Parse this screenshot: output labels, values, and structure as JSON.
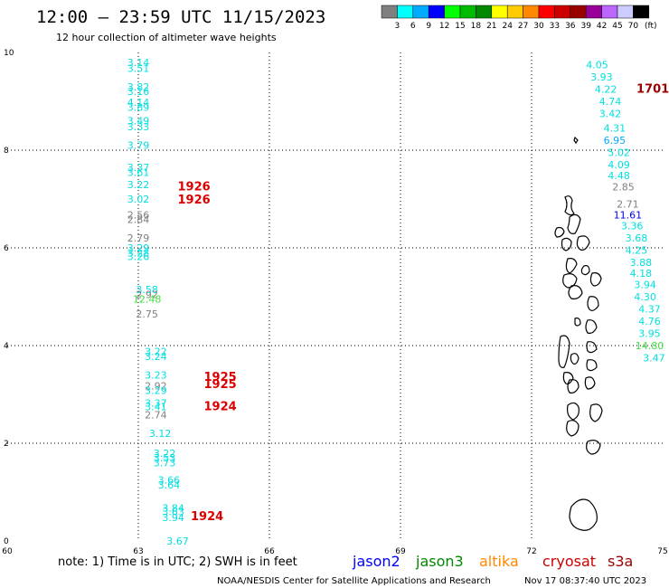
{
  "header": {
    "title": "12:00 — 23:59 UTC 11/15/2023",
    "subtitle": "12 hour collection of altimeter wave heights"
  },
  "colorbar": {
    "unit": "(ft)",
    "ticks": [
      "3",
      "6",
      "9",
      "12",
      "15",
      "18",
      "21",
      "24",
      "27",
      "30",
      "33",
      "36",
      "39",
      "42",
      "45",
      "70"
    ],
    "colors": [
      "#7f7f7f",
      "#00ffff",
      "#00aaff",
      "#0000ff",
      "#00ff00",
      "#00bb00",
      "#008800",
      "#ffff00",
      "#ffcc00",
      "#ff8800",
      "#ff0000",
      "#cc0000",
      "#990000",
      "#990099",
      "#bb66ff",
      "#ccccff",
      "#000000"
    ]
  },
  "footer": {
    "note": "note:  1) Time is in UTC;  2) SWH is in feet",
    "credit": "NOAA/NESDIS Center for Satellite Applications and Research",
    "generated": "Nov 17 08:37:40 UTC 2023"
  },
  "legend": [
    {
      "label": "jason2",
      "color": "#0000ff"
    },
    {
      "label": "jason3",
      "color": "#008800"
    },
    {
      "label": "altika",
      "color": "#ff8800"
    },
    {
      "label": "cryosat",
      "color": "#cc0000"
    },
    {
      "label": "s3a",
      "color": "#990000"
    }
  ],
  "chart_data": {
    "type": "scatter",
    "title": "12:00 — 23:59 UTC 11/15/2023",
    "subtitle": "12 hour collection of altimeter wave heights",
    "xlim": [
      60,
      75
    ],
    "ylim": [
      0,
      10
    ],
    "x_ticks": [
      60,
      63,
      66,
      69,
      72,
      75
    ],
    "y_ticks": [
      0,
      2,
      4,
      6,
      8,
      10
    ],
    "grid": true,
    "wave_heights_ft": [
      {
        "x": 63.0,
        "y": 9.8,
        "v": "3.14",
        "c": "#00e0e0"
      },
      {
        "x": 63.0,
        "y": 9.68,
        "v": "3.51",
        "c": "#00e0e0"
      },
      {
        "x": 63.0,
        "y": 9.3,
        "v": "3.82",
        "c": "#00e0e0"
      },
      {
        "x": 63.0,
        "y": 9.2,
        "v": "3.16",
        "c": "#00e0e0"
      },
      {
        "x": 63.0,
        "y": 8.98,
        "v": "4.14",
        "c": "#00e0e0"
      },
      {
        "x": 63.0,
        "y": 8.88,
        "v": "3.89",
        "c": "#00e0e0"
      },
      {
        "x": 63.0,
        "y": 8.6,
        "v": "3.49",
        "c": "#00e0e0"
      },
      {
        "x": 63.0,
        "y": 8.48,
        "v": "3.33",
        "c": "#00e0e0"
      },
      {
        "x": 63.0,
        "y": 8.1,
        "v": "3.79",
        "c": "#00e0e0"
      },
      {
        "x": 63.0,
        "y": 7.65,
        "v": "3.37",
        "c": "#00e0e0"
      },
      {
        "x": 63.0,
        "y": 7.55,
        "v": "3.61",
        "c": "#00e0e0"
      },
      {
        "x": 63.0,
        "y": 7.3,
        "v": "3.22",
        "c": "#00e0e0"
      },
      {
        "x": 63.0,
        "y": 7.0,
        "v": "3.02",
        "c": "#00e0e0"
      },
      {
        "x": 63.0,
        "y": 6.68,
        "v": "2.56",
        "c": "#7f7f7f"
      },
      {
        "x": 63.0,
        "y": 6.58,
        "v": "2.84",
        "c": "#7f7f7f"
      },
      {
        "x": 63.0,
        "y": 6.2,
        "v": "2.79",
        "c": "#7f7f7f"
      },
      {
        "x": 63.0,
        "y": 6.0,
        "v": "3.29",
        "c": "#00e0e0"
      },
      {
        "x": 63.0,
        "y": 5.9,
        "v": "3.28",
        "c": "#00e0e0"
      },
      {
        "x": 63.0,
        "y": 5.82,
        "v": "3.26",
        "c": "#00e0e0"
      },
      {
        "x": 63.2,
        "y": 5.15,
        "v": "3.58",
        "c": "#00e0e0"
      },
      {
        "x": 63.2,
        "y": 5.05,
        "v": "2.92",
        "c": "#7f7f7f"
      },
      {
        "x": 63.2,
        "y": 4.95,
        "v": "12.48",
        "c": "#44dd44"
      },
      {
        "x": 63.2,
        "y": 4.65,
        "v": "2.75",
        "c": "#7f7f7f"
      },
      {
        "x": 63.4,
        "y": 3.88,
        "v": "3.22",
        "c": "#00e0e0"
      },
      {
        "x": 63.4,
        "y": 3.78,
        "v": "3.24",
        "c": "#00e0e0"
      },
      {
        "x": 63.4,
        "y": 3.4,
        "v": "3.23",
        "c": "#00e0e0"
      },
      {
        "x": 63.4,
        "y": 3.18,
        "v": "2.92",
        "c": "#7f7f7f"
      },
      {
        "x": 63.4,
        "y": 3.08,
        "v": "3.29",
        "c": "#00e0e0"
      },
      {
        "x": 63.4,
        "y": 2.82,
        "v": "3.37",
        "c": "#00e0e0"
      },
      {
        "x": 63.4,
        "y": 2.75,
        "v": "3.41",
        "c": "#00e0e0"
      },
      {
        "x": 63.4,
        "y": 2.58,
        "v": "2.74",
        "c": "#7f7f7f"
      },
      {
        "x": 63.5,
        "y": 2.2,
        "v": "3.12",
        "c": "#00e0e0"
      },
      {
        "x": 63.6,
        "y": 1.8,
        "v": "3.22",
        "c": "#00e0e0"
      },
      {
        "x": 63.6,
        "y": 1.7,
        "v": "3.53",
        "c": "#00e0e0"
      },
      {
        "x": 63.6,
        "y": 1.6,
        "v": "3.73",
        "c": "#00e0e0"
      },
      {
        "x": 63.7,
        "y": 1.25,
        "v": "3.66",
        "c": "#00e0e0"
      },
      {
        "x": 63.7,
        "y": 1.15,
        "v": "3.64",
        "c": "#00e0e0"
      },
      {
        "x": 63.8,
        "y": 0.68,
        "v": "3.84",
        "c": "#00e0e0"
      },
      {
        "x": 63.8,
        "y": 0.6,
        "v": "3.63",
        "c": "#00e0e0"
      },
      {
        "x": 63.8,
        "y": 0.48,
        "v": "3.94",
        "c": "#00e0e0"
      },
      {
        "x": 63.9,
        "y": 0.0,
        "v": "3.67",
        "c": "#00e0e0"
      },
      {
        "x": 73.5,
        "y": 9.75,
        "v": "4.05",
        "c": "#00e0e0"
      },
      {
        "x": 73.6,
        "y": 9.5,
        "v": "3.93",
        "c": "#00e0e0"
      },
      {
        "x": 73.7,
        "y": 9.25,
        "v": "4.22",
        "c": "#00e0e0"
      },
      {
        "x": 73.8,
        "y": 9.0,
        "v": "4.74",
        "c": "#00e0e0"
      },
      {
        "x": 73.8,
        "y": 8.75,
        "v": "3.42",
        "c": "#00e0e0"
      },
      {
        "x": 73.9,
        "y": 8.45,
        "v": "4.31",
        "c": "#00e0e0"
      },
      {
        "x": 73.9,
        "y": 8.2,
        "v": "6.95",
        "c": "#00aaff"
      },
      {
        "x": 74.0,
        "y": 7.95,
        "v": "5.02",
        "c": "#00e0e0"
      },
      {
        "x": 74.0,
        "y": 7.7,
        "v": "4.09",
        "c": "#00e0e0"
      },
      {
        "x": 74.0,
        "y": 7.48,
        "v": "4.48",
        "c": "#00e0e0"
      },
      {
        "x": 74.1,
        "y": 7.25,
        "v": "2.85",
        "c": "#7f7f7f"
      },
      {
        "x": 74.2,
        "y": 6.9,
        "v": "2.71",
        "c": "#7f7f7f"
      },
      {
        "x": 74.2,
        "y": 6.68,
        "v": "11.61",
        "c": "#0000ff"
      },
      {
        "x": 74.3,
        "y": 6.45,
        "v": "3.36",
        "c": "#00e0e0"
      },
      {
        "x": 74.4,
        "y": 6.2,
        "v": "3.68",
        "c": "#00e0e0"
      },
      {
        "x": 74.4,
        "y": 5.95,
        "v": "4.25",
        "c": "#00e0e0"
      },
      {
        "x": 74.5,
        "y": 5.7,
        "v": "3.88",
        "c": "#00e0e0"
      },
      {
        "x": 74.5,
        "y": 5.48,
        "v": "4.18",
        "c": "#00e0e0"
      },
      {
        "x": 74.6,
        "y": 5.25,
        "v": "3.94",
        "c": "#00e0e0"
      },
      {
        "x": 74.6,
        "y": 5.0,
        "v": "4.30",
        "c": "#00e0e0"
      },
      {
        "x": 74.7,
        "y": 4.75,
        "v": "4.37",
        "c": "#00e0e0"
      },
      {
        "x": 74.7,
        "y": 4.5,
        "v": "4.76",
        "c": "#00e0e0"
      },
      {
        "x": 74.7,
        "y": 4.25,
        "v": "3.95",
        "c": "#00e0e0"
      },
      {
        "x": 74.7,
        "y": 4.0,
        "v": "14.80",
        "c": "#44dd44"
      },
      {
        "x": 74.8,
        "y": 3.75,
        "v": "3.47",
        "c": "#00e0e0"
      }
    ],
    "pass_times_utc": [
      {
        "x": 63.9,
        "y": 7.25,
        "v": "1926",
        "c": "#dd0000"
      },
      {
        "x": 63.9,
        "y": 6.98,
        "v": "1926",
        "c": "#dd0000"
      },
      {
        "x": 64.5,
        "y": 3.35,
        "v": "1925",
        "c": "#dd0000"
      },
      {
        "x": 64.5,
        "y": 3.2,
        "v": "1925",
        "c": "#dd0000"
      },
      {
        "x": 64.5,
        "y": 2.75,
        "v": "1924",
        "c": "#dd0000"
      },
      {
        "x": 64.2,
        "y": 0.5,
        "v": "1924",
        "c": "#dd0000"
      },
      {
        "x": 74.4,
        "y": 9.25,
        "v": "1701",
        "c": "#990000"
      }
    ]
  }
}
